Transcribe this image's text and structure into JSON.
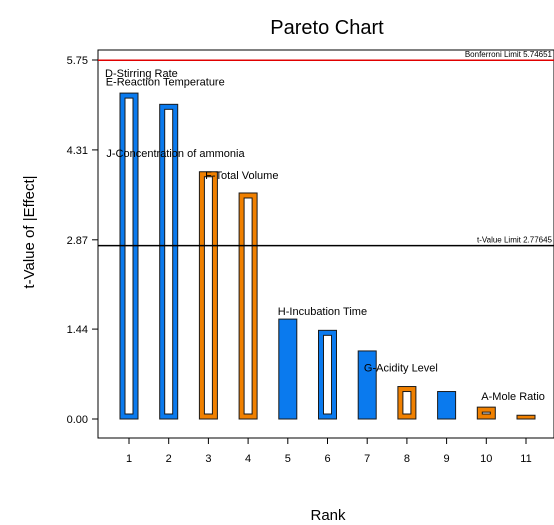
{
  "chart_data": {
    "type": "bar",
    "title": "Pareto Chart",
    "xlabel": "Rank",
    "ylabel": "t-Value of |Effect|",
    "ylim": [
      0,
      5.75
    ],
    "xlim": [
      0.5,
      11.5
    ],
    "yticks": [
      "0.00",
      "1.44",
      "2.87",
      "4.31",
      "5.75"
    ],
    "ytick_values": [
      0.0,
      1.44,
      2.87,
      4.31,
      5.75
    ],
    "categories": [
      "1",
      "2",
      "3",
      "4",
      "5",
      "6",
      "7",
      "8",
      "9",
      "10",
      "11"
    ],
    "bars": [
      {
        "rank": 1,
        "value": 5.22,
        "label": "D-Stirring Rate",
        "effect": "positive",
        "fill": "outline"
      },
      {
        "rank": 2,
        "value": 5.04,
        "label": "E-Reaction Temperature",
        "effect": "positive",
        "fill": "outline"
      },
      {
        "rank": 3,
        "value": 3.96,
        "label": "J-Concentration of ammonia",
        "effect": "negative",
        "fill": "outline"
      },
      {
        "rank": 4,
        "value": 3.62,
        "label": "F-Total Volume",
        "effect": "negative",
        "fill": "outline"
      },
      {
        "rank": 5,
        "value": 1.6,
        "label": "H-Incubation Time",
        "effect": "positive",
        "fill": "solid"
      },
      {
        "rank": 6,
        "value": 1.42,
        "label": "",
        "effect": "positive",
        "fill": "outline"
      },
      {
        "rank": 7,
        "value": 1.09,
        "label": "",
        "effect": "positive",
        "fill": "solid"
      },
      {
        "rank": 8,
        "value": 0.52,
        "label": "G-Acidity Level",
        "effect": "negative",
        "fill": "outline"
      },
      {
        "rank": 9,
        "value": 0.44,
        "label": "",
        "effect": "positive",
        "fill": "solid"
      },
      {
        "rank": 10,
        "value": 0.19,
        "label": "A-Mole Ratio",
        "effect": "negative",
        "fill": "outline"
      },
      {
        "rank": 11,
        "value": 0.06,
        "label": "",
        "effect": "negative",
        "fill": "solid"
      }
    ],
    "reference_lines": [
      {
        "label": "Bonferroni Limit 5.74651",
        "value": 5.74651,
        "color": "#e00000"
      },
      {
        "label": "t-Value Limit 2.77645",
        "value": 2.77645,
        "color": "#000000"
      }
    ],
    "colors": {
      "positive": "#0a7aee",
      "negative": "#f08000",
      "outline": "#1a1a1a"
    },
    "grid": false
  }
}
